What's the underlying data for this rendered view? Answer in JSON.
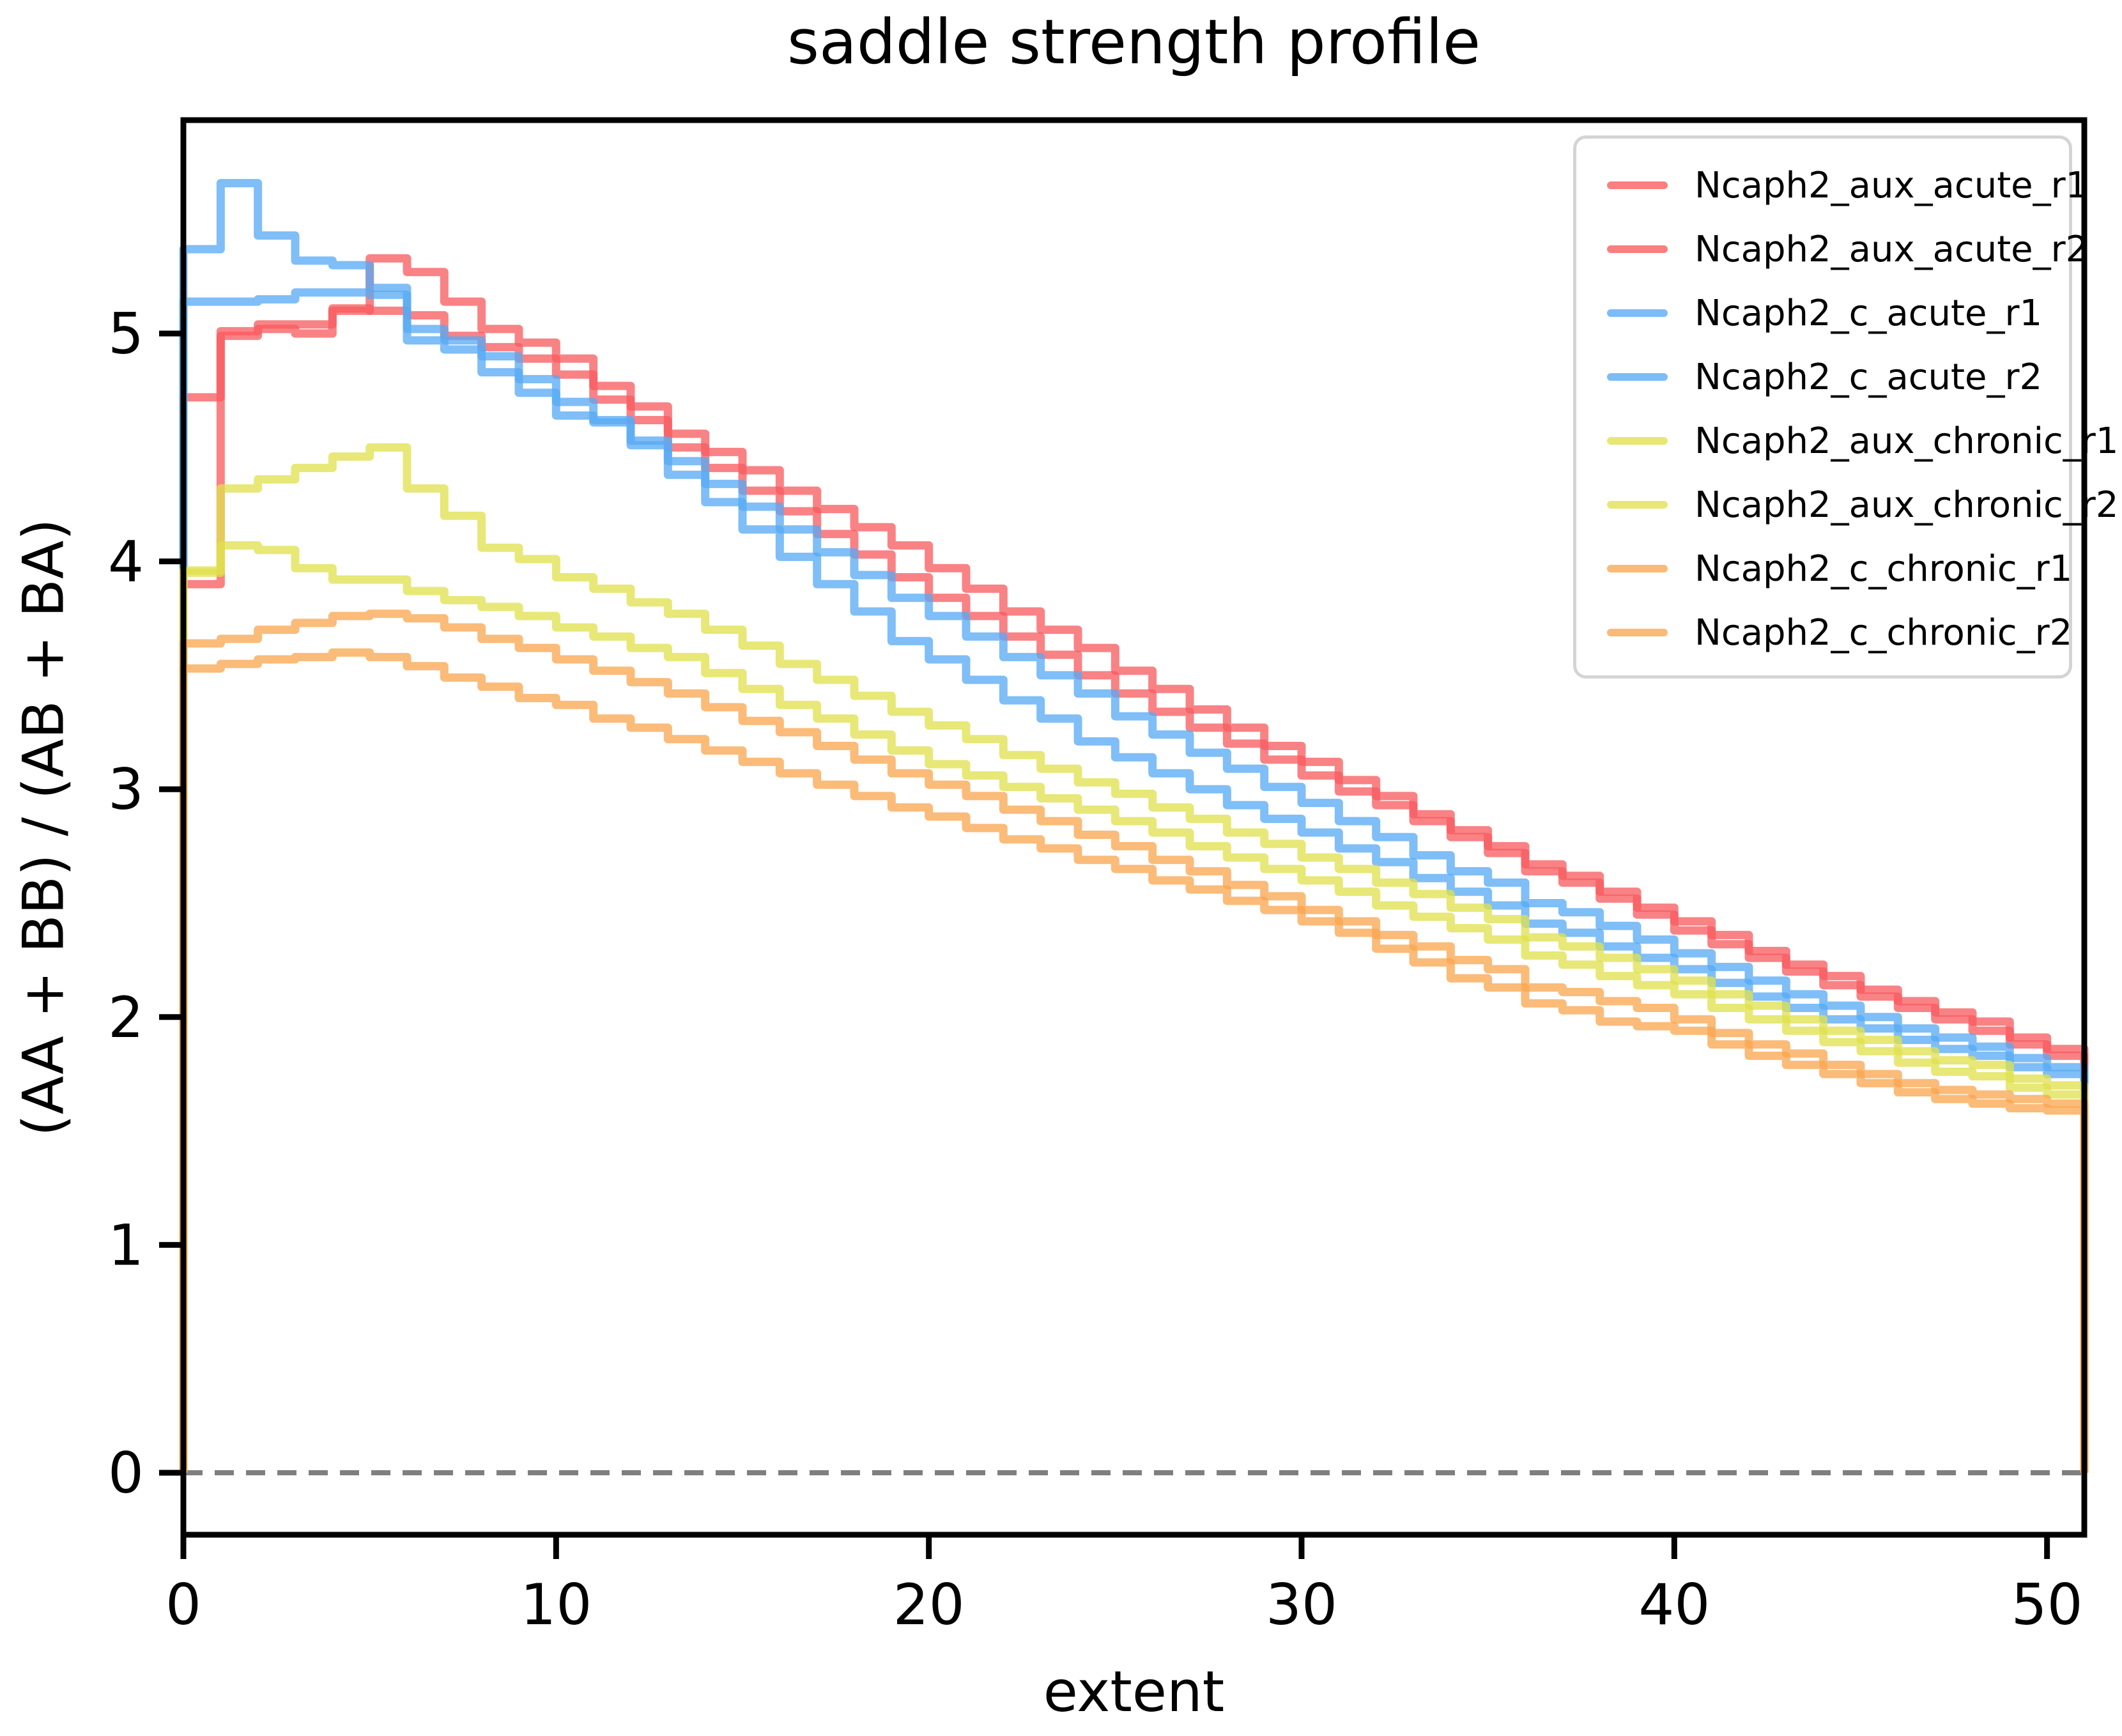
{
  "title": "saddle strength profile",
  "axes": {
    "xlabel": "extent",
    "ylabel": "(AA + BB) / (AB + BA)",
    "x_ticks": [
      0,
      10,
      20,
      30,
      40,
      50
    ],
    "y_ticks": [
      0,
      1,
      2,
      3,
      4,
      5
    ],
    "xlim": [
      0,
      51
    ],
    "ylim": [
      -0.27,
      5.94
    ],
    "grid": false,
    "legend_position": "upper right"
  },
  "chart_data": {
    "type": "line",
    "subtype": "step-histogram",
    "step_mode": "post",
    "title": "saddle strength profile",
    "xlabel": "extent",
    "ylabel": "(AA + BB) / (AB + BA)",
    "bin_width": 1,
    "zero_line": {
      "y": 0,
      "style": "dashed",
      "color": "#7f7f7f"
    },
    "colors": {
      "acute_red": "#f75b5e",
      "acute_blue": "#57a9f5",
      "chronic_yellow": "#e0e14c",
      "chronic_orange": "#faa64f"
    },
    "series": [
      {
        "name": "Ncaph2_aux_acute_r1",
        "color": "#f75b5e",
        "values": [
          4.72,
          5.01,
          5.04,
          5.04,
          5.1,
          5.33,
          5.27,
          5.14,
          5.02,
          4.96,
          4.89,
          4.77,
          4.68,
          4.56,
          4.48,
          4.4,
          4.31,
          4.23,
          4.15,
          4.07,
          3.97,
          3.88,
          3.78,
          3.7,
          3.62,
          3.52,
          3.44,
          3.35,
          3.27,
          3.19,
          3.12,
          3.04,
          2.97,
          2.89,
          2.82,
          2.75,
          2.67,
          2.62,
          2.55,
          2.48,
          2.42,
          2.36,
          2.29,
          2.23,
          2.18,
          2.12,
          2.07,
          2.02,
          1.98,
          1.91,
          1.86
        ]
      },
      {
        "name": "Ncaph2_aux_acute_r2",
        "color": "#f75b5e",
        "values": [
          3.9,
          4.99,
          5.02,
          5.0,
          5.11,
          5.1,
          5.08,
          4.99,
          4.94,
          4.89,
          4.82,
          4.71,
          4.62,
          4.5,
          4.41,
          4.31,
          4.22,
          4.12,
          4.03,
          3.93,
          3.84,
          3.76,
          3.67,
          3.59,
          3.5,
          3.42,
          3.34,
          3.27,
          3.2,
          3.13,
          3.06,
          2.99,
          2.93,
          2.86,
          2.79,
          2.72,
          2.64,
          2.59,
          2.52,
          2.45,
          2.38,
          2.32,
          2.26,
          2.2,
          2.14,
          2.09,
          2.04,
          1.99,
          1.94,
          1.88,
          1.83
        ]
      },
      {
        "name": "Ncaph2_c_acute_r1",
        "color": "#57a9f5",
        "values": [
          5.14,
          5.14,
          5.15,
          5.18,
          5.18,
          5.17,
          5.02,
          4.97,
          4.9,
          4.8,
          4.7,
          4.62,
          4.53,
          4.44,
          4.34,
          4.24,
          4.14,
          4.04,
          3.94,
          3.84,
          3.76,
          3.67,
          3.58,
          3.5,
          3.42,
          3.32,
          3.24,
          3.16,
          3.09,
          3.01,
          2.94,
          2.86,
          2.79,
          2.71,
          2.64,
          2.59,
          2.5,
          2.46,
          2.4,
          2.34,
          2.28,
          2.22,
          2.16,
          2.1,
          2.05,
          2.0,
          1.95,
          1.91,
          1.87,
          1.82,
          1.78
        ]
      },
      {
        "name": "Ncaph2_c_acute_r2",
        "color": "#57a9f5",
        "values": [
          5.37,
          5.66,
          5.43,
          5.32,
          5.3,
          5.2,
          4.97,
          4.93,
          4.83,
          4.74,
          4.64,
          4.61,
          4.51,
          4.38,
          4.26,
          4.14,
          4.02,
          3.9,
          3.78,
          3.65,
          3.57,
          3.48,
          3.39,
          3.31,
          3.21,
          3.14,
          3.07,
          3.0,
          2.93,
          2.87,
          2.81,
          2.74,
          2.68,
          2.61,
          2.55,
          2.49,
          2.41,
          2.37,
          2.31,
          2.26,
          2.21,
          2.15,
          2.09,
          2.04,
          1.99,
          1.95,
          1.9,
          1.86,
          1.83,
          1.78,
          1.75
        ]
      },
      {
        "name": "Ncaph2_aux_chronic_r1",
        "color": "#e0e14c",
        "values": [
          3.95,
          4.32,
          4.36,
          4.41,
          4.46,
          4.5,
          4.32,
          4.2,
          4.06,
          4.01,
          3.93,
          3.88,
          3.82,
          3.77,
          3.7,
          3.63,
          3.55,
          3.48,
          3.41,
          3.34,
          3.28,
          3.22,
          3.15,
          3.09,
          3.03,
          2.98,
          2.92,
          2.87,
          2.81,
          2.76,
          2.7,
          2.65,
          2.59,
          2.54,
          2.48,
          2.43,
          2.35,
          2.31,
          2.26,
          2.21,
          2.16,
          2.1,
          2.05,
          1.99,
          1.94,
          1.9,
          1.85,
          1.81,
          1.79,
          1.73,
          1.7
        ]
      },
      {
        "name": "Ncaph2_aux_chronic_r2",
        "color": "#e0e14c",
        "values": [
          3.96,
          4.07,
          4.05,
          3.97,
          3.92,
          3.92,
          3.87,
          3.83,
          3.8,
          3.76,
          3.71,
          3.67,
          3.62,
          3.58,
          3.51,
          3.44,
          3.37,
          3.31,
          3.24,
          3.17,
          3.11,
          3.06,
          3.01,
          2.96,
          2.91,
          2.86,
          2.81,
          2.75,
          2.7,
          2.65,
          2.6,
          2.55,
          2.49,
          2.44,
          2.39,
          2.34,
          2.27,
          2.23,
          2.18,
          2.14,
          2.1,
          2.04,
          1.99,
          1.94,
          1.89,
          1.85,
          1.8,
          1.76,
          1.74,
          1.69,
          1.66
        ]
      },
      {
        "name": "Ncaph2_c_chronic_r1",
        "color": "#faa64f",
        "values": [
          3.64,
          3.66,
          3.7,
          3.73,
          3.76,
          3.77,
          3.75,
          3.71,
          3.66,
          3.62,
          3.57,
          3.52,
          3.47,
          3.42,
          3.36,
          3.3,
          3.25,
          3.19,
          3.13,
          3.07,
          3.02,
          2.97,
          2.91,
          2.86,
          2.8,
          2.75,
          2.69,
          2.64,
          2.58,
          2.53,
          2.47,
          2.42,
          2.36,
          2.31,
          2.25,
          2.21,
          2.13,
          2.11,
          2.07,
          2.04,
          1.99,
          1.93,
          1.88,
          1.84,
          1.79,
          1.75,
          1.71,
          1.68,
          1.66,
          1.64,
          1.62
        ]
      },
      {
        "name": "Ncaph2_c_chronic_r2",
        "color": "#faa64f",
        "values": [
          3.53,
          3.55,
          3.57,
          3.58,
          3.6,
          3.58,
          3.54,
          3.49,
          3.45,
          3.4,
          3.37,
          3.31,
          3.27,
          3.22,
          3.17,
          3.12,
          3.07,
          3.02,
          2.97,
          2.92,
          2.88,
          2.83,
          2.78,
          2.74,
          2.69,
          2.65,
          2.6,
          2.56,
          2.51,
          2.47,
          2.42,
          2.37,
          2.3,
          2.24,
          2.17,
          2.13,
          2.06,
          2.03,
          1.98,
          1.96,
          1.94,
          1.88,
          1.83,
          1.79,
          1.75,
          1.71,
          1.67,
          1.64,
          1.62,
          1.6,
          1.59
        ]
      }
    ]
  },
  "legend": {
    "entries": [
      "Ncaph2_aux_acute_r1",
      "Ncaph2_aux_acute_r2",
      "Ncaph2_c_acute_r1",
      "Ncaph2_c_acute_r2",
      "Ncaph2_aux_chronic_r1",
      "Ncaph2_aux_chronic_r2",
      "Ncaph2_c_chronic_r1",
      "Ncaph2_c_chronic_r2"
    ]
  }
}
